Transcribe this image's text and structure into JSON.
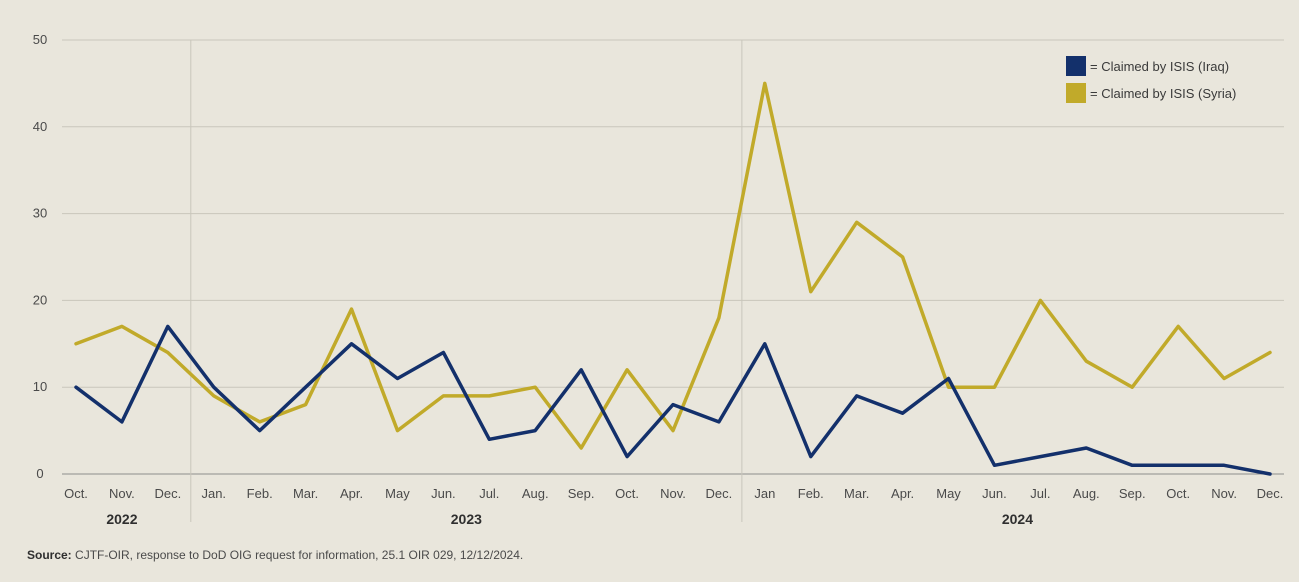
{
  "chart_data": {
    "type": "line",
    "categories": [
      "Oct.",
      "Nov.",
      "Dec.",
      "Jan.",
      "Feb.",
      "Mar.",
      "Apr.",
      "May",
      "Jun.",
      "Jul.",
      "Aug.",
      "Sep.",
      "Oct.",
      "Nov.",
      "Dec.",
      "Jan",
      "Feb.",
      "Mar.",
      "Apr.",
      "May",
      "Jun.",
      "Jul.",
      "Aug.",
      "Sep.",
      "Oct.",
      "Nov.",
      "Dec."
    ],
    "year_groups": [
      {
        "label": "2022",
        "start": 0,
        "end": 2
      },
      {
        "label": "2023",
        "start": 3,
        "end": 14
      },
      {
        "label": "2024",
        "start": 15,
        "end": 26
      }
    ],
    "series": [
      {
        "name": "= Claimed by ISIS (Iraq)",
        "color": "#13306b",
        "values": [
          10,
          6,
          17,
          10,
          5,
          10,
          15,
          11,
          14,
          4,
          5,
          12,
          2,
          8,
          6,
          15,
          2,
          9,
          7,
          11,
          1,
          2,
          3,
          1,
          1,
          1,
          0
        ]
      },
      {
        "name": "= Claimed by ISIS (Syria)",
        "color": "#c1aa2a",
        "values": [
          15,
          17,
          14,
          9,
          6,
          8,
          19,
          5,
          9,
          9,
          10,
          3,
          12,
          5,
          18,
          45,
          21,
          29,
          25,
          10,
          10,
          20,
          13,
          10,
          17,
          11,
          14
        ]
      }
    ],
    "yticks": [
      0,
      10,
      20,
      30,
      40,
      50
    ],
    "ylim": [
      0,
      50
    ],
    "grid": true,
    "legend_position": "top-right",
    "title": "",
    "xlabel": "",
    "ylabel": ""
  },
  "source": {
    "label": "Source:",
    "text": " CJTF-OIR, response to DoD OIG request for information, 25.1 OIR 029, 12/12/2024."
  }
}
